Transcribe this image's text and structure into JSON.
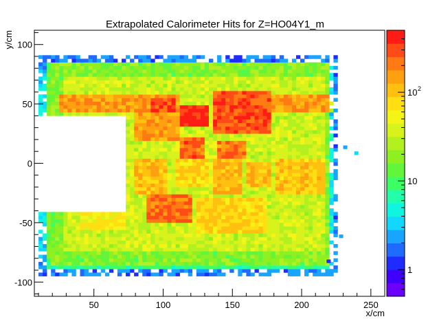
{
  "chart_data": {
    "type": "heatmap",
    "title": "Extrapolated Calorimeter Hits for Z=HO04Y1_m",
    "xlabel": "x/cm",
    "ylabel": "y/cm",
    "xlim": [
      7,
      260
    ],
    "ylim": [
      -112,
      112
    ],
    "zlim": [
      0.5,
      500
    ],
    "z_scale": "log",
    "bin_size_cm": 3,
    "x_ticks": [
      50,
      100,
      150,
      200,
      250
    ],
    "y_ticks": [
      -100,
      -50,
      0,
      50,
      100
    ],
    "z_ticks": [
      {
        "value": 1,
        "label": "1"
      },
      {
        "value": 10,
        "label": "10"
      },
      {
        "value": 100,
        "label": "10",
        "exponent": "2"
      }
    ],
    "palette": [
      "#6a00ff",
      "#3f00ff",
      "#1f2cff",
      "#1f6aff",
      "#18a4ff",
      "#12d8ff",
      "#10f5e0",
      "#22ffaa",
      "#3cff66",
      "#63f53a",
      "#8ef020",
      "#b3f020",
      "#d8f21c",
      "#f4f516",
      "#ffde12",
      "#ffc010",
      "#ffa010",
      "#ff7a12",
      "#ff4c16",
      "#ff1c14"
    ],
    "hole": {
      "x": [
        7,
        72
      ],
      "y": [
        -40,
        40
      ]
    },
    "active_region": {
      "x": [
        10,
        226
      ],
      "y": [
        -95,
        92
      ]
    },
    "regions": [
      {
        "x": [
          10,
          226
        ],
        "y": [
          -95,
          92
        ],
        "value": 8
      },
      {
        "x": [
          18,
          222
        ],
        "y": [
          -86,
          84
        ],
        "value": 18
      },
      {
        "x": [
          28,
          218
        ],
        "y": [
          -75,
          74
        ],
        "value": 35
      },
      {
        "x": [
          10,
          30
        ],
        "y": [
          -80,
          80
        ],
        "value": 15
      },
      {
        "x": [
          25,
          112
        ],
        "y": [
          42,
          58
        ],
        "value": 160
      },
      {
        "x": [
          80,
          112
        ],
        "y": [
          20,
          55
        ],
        "value": 150
      },
      {
        "x": [
          90,
          110
        ],
        "y": [
          44,
          56
        ],
        "value": 320
      },
      {
        "x": [
          112,
          132
        ],
        "y": [
          32,
          50
        ],
        "value": 420
      },
      {
        "x": [
          135,
          178
        ],
        "y": [
          25,
          60
        ],
        "value": 300
      },
      {
        "x": [
          178,
          222
        ],
        "y": [
          42,
          58
        ],
        "value": 150
      },
      {
        "x": [
          112,
          130
        ],
        "y": [
          5,
          22
        ],
        "value": 260
      },
      {
        "x": [
          140,
          160
        ],
        "y": [
          5,
          20
        ],
        "value": 200
      },
      {
        "x": [
          80,
          102
        ],
        "y": [
          -25,
          5
        ],
        "value": 110
      },
      {
        "x": [
          110,
          132
        ],
        "y": [
          -20,
          5
        ],
        "value": 85
      },
      {
        "x": [
          135,
          158
        ],
        "y": [
          -25,
          5
        ],
        "value": 120
      },
      {
        "x": [
          160,
          178
        ],
        "y": [
          -20,
          0
        ],
        "value": 110
      },
      {
        "x": [
          182,
          218
        ],
        "y": [
          -25,
          5
        ],
        "value": 100
      },
      {
        "x": [
          88,
          122
        ],
        "y": [
          -50,
          -25
        ],
        "value": 240
      },
      {
        "x": [
          125,
          175
        ],
        "y": [
          -60,
          -30
        ],
        "value": 90
      },
      {
        "x": [
          40,
          72
        ],
        "y": [
          -55,
          -40
        ],
        "value": 60
      },
      {
        "x": [
          112,
          135
        ],
        "y": [
          -8,
          2
        ],
        "value": 22
      },
      {
        "x": [
          80,
          220
        ],
        "y": [
          -8,
          0
        ],
        "value": 28
      }
    ]
  }
}
